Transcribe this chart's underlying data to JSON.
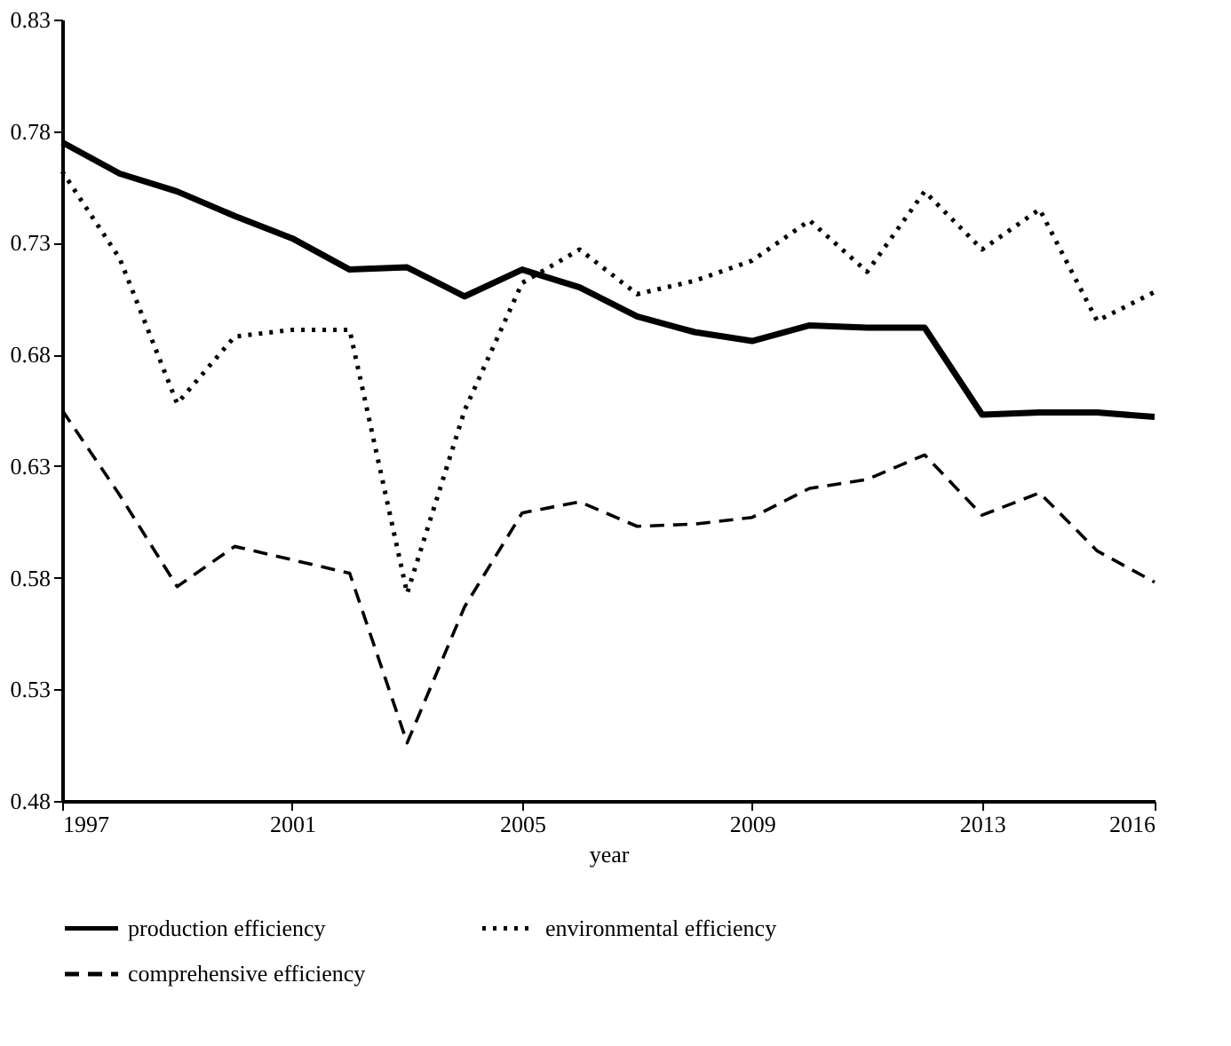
{
  "chart_data": {
    "type": "line",
    "xlabel": "year",
    "x": [
      1997,
      1998,
      1999,
      2000,
      2001,
      2002,
      2003,
      2004,
      2005,
      2006,
      2007,
      2008,
      2009,
      2010,
      2011,
      2012,
      2013,
      2014,
      2015,
      2016
    ],
    "series": [
      {
        "name": "production efficiency",
        "color": "#000000",
        "line_style": "solid",
        "values": [
          0.775,
          0.761,
          0.753,
          0.742,
          0.732,
          0.718,
          0.719,
          0.706,
          0.718,
          0.71,
          0.697,
          0.69,
          0.686,
          0.693,
          0.692,
          0.692,
          0.653,
          0.654,
          0.654,
          0.652
        ]
      },
      {
        "name": "environmental efficiency",
        "color": "#000000",
        "line_style": "dotted",
        "values": [
          0.762,
          0.723,
          0.658,
          0.688,
          0.691,
          0.691,
          0.573,
          0.655,
          0.712,
          0.727,
          0.707,
          0.713,
          0.722,
          0.74,
          0.717,
          0.753,
          0.727,
          0.745,
          0.695,
          0.708
        ]
      },
      {
        "name": "comprehensive efficiency",
        "color": "#000000",
        "line_style": "dashed",
        "values": [
          0.655,
          0.617,
          0.576,
          0.594,
          0.588,
          0.582,
          0.506,
          0.567,
          0.609,
          0.614,
          0.603,
          0.604,
          0.607,
          0.62,
          0.624,
          0.635,
          0.608,
          0.618,
          0.592,
          0.578
        ]
      }
    ],
    "xlim": [
      1997,
      2016
    ],
    "xticks": [
      1997,
      2001,
      2005,
      2009,
      2013,
      2016
    ],
    "ylim": [
      0.48,
      0.83
    ],
    "yticks": [
      0.48,
      0.53,
      0.58,
      0.63,
      0.68,
      0.73,
      0.78,
      0.83
    ],
    "grid": false,
    "legend": "bottom",
    "marker": "none"
  }
}
